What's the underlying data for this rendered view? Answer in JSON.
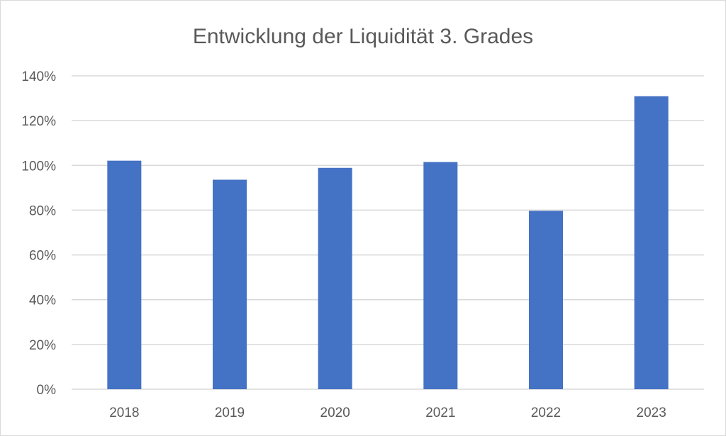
{
  "chart_data": {
    "type": "bar",
    "title": "Entwicklung der Liquidität 3. Grades",
    "xlabel": "",
    "ylabel": "",
    "categories": [
      "2018",
      "2019",
      "2020",
      "2021",
      "2022",
      "2023"
    ],
    "values": [
      102.1,
      93.6,
      98.9,
      101.5,
      79.7,
      130.9
    ],
    "value_unit": "%",
    "ylim": [
      0,
      140
    ],
    "yticks": [
      0,
      20,
      40,
      60,
      80,
      100,
      120,
      140
    ],
    "ytick_labels": [
      "0%",
      "20%",
      "40%",
      "60%",
      "80%",
      "100%",
      "120%",
      "140%"
    ],
    "grid": true,
    "legend": "none",
    "colors": {
      "bar": "#4472C4",
      "grid": "#D9D9D9",
      "text": "#595959"
    }
  }
}
